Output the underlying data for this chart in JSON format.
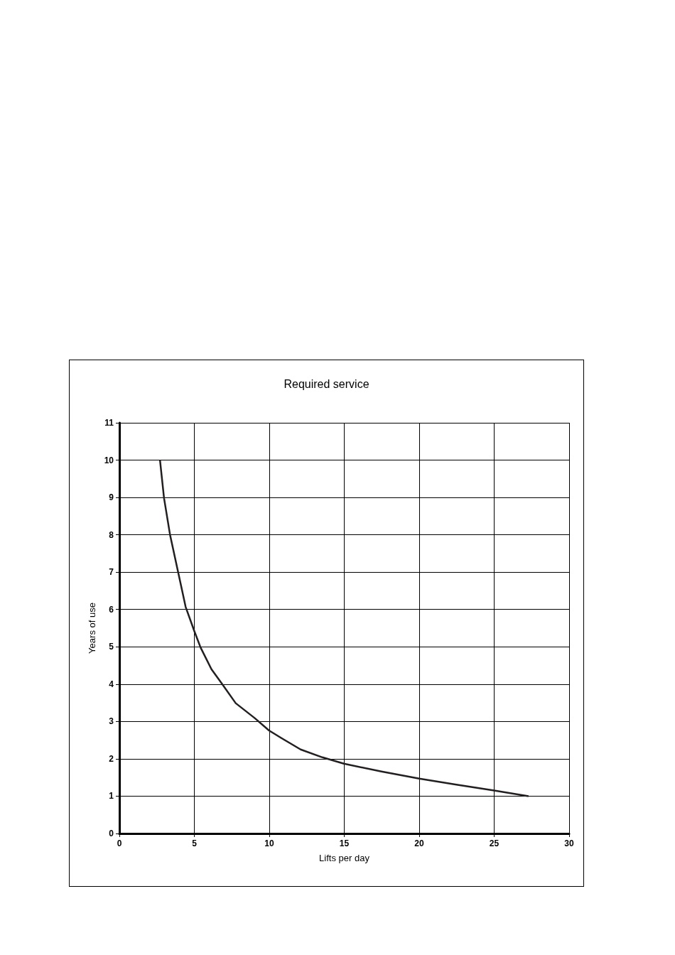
{
  "chart_data": {
    "type": "line",
    "title": "Required service",
    "xlabel": "Lifts per day",
    "ylabel": "Years of use",
    "x": [
      2.71,
      2.98,
      3.38,
      3.92,
      4.42,
      5.0,
      5.42,
      6.14,
      6.86,
      7.76,
      9.03,
      9.98,
      10.83,
      12.09,
      13.54,
      14.98,
      17.48,
      20.0,
      22.48,
      25.0,
      27.29
    ],
    "series": [
      {
        "color": "#231f20",
        "values": [
          10,
          8.98,
          8.0,
          7.0,
          6.07,
          5.42,
          4.98,
          4.4,
          4.0,
          3.49,
          3.09,
          2.76,
          2.55,
          2.25,
          2.04,
          1.87,
          1.66,
          1.47,
          1.31,
          1.15,
          1.0
        ]
      }
    ],
    "xlim": [
      0,
      30
    ],
    "xticks": [
      0,
      5,
      10,
      15,
      20,
      25,
      30
    ],
    "ylim": [
      0,
      11
    ],
    "yticks": [
      0,
      1,
      2,
      3,
      4,
      5,
      6,
      7,
      8,
      9,
      10,
      11
    ],
    "grid": true,
    "marker": "none",
    "line_style": "solid"
  }
}
